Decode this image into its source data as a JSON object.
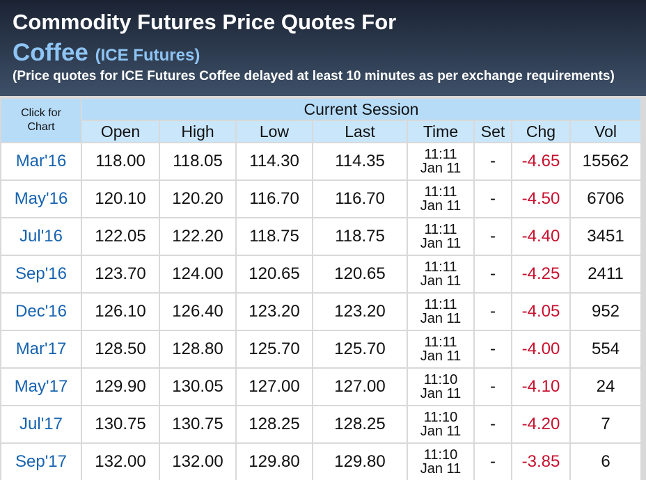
{
  "header": {
    "title": "Commodity Futures Price Quotes For",
    "commodity": "Coffee",
    "exchange": "(ICE Futures)",
    "note": "(Price quotes for ICE Futures Coffee delayed at least 10 minutes as per exchange requirements)"
  },
  "table": {
    "chart_header": "Click for Chart",
    "session_header": "Current Session",
    "columns": [
      "Open",
      "High",
      "Low",
      "Last",
      "Time",
      "Set",
      "Chg",
      "Vol"
    ],
    "rows": [
      {
        "contract": "Mar'16",
        "open": "118.00",
        "high": "118.05",
        "low": "114.30",
        "last": "114.35",
        "time": "11:11",
        "date": "Jan 11",
        "set": "-",
        "chg": "-4.65",
        "vol": "15562"
      },
      {
        "contract": "May'16",
        "open": "120.10",
        "high": "120.20",
        "low": "116.70",
        "last": "116.70",
        "time": "11:11",
        "date": "Jan 11",
        "set": "-",
        "chg": "-4.50",
        "vol": "6706"
      },
      {
        "contract": "Jul'16",
        "open": "122.05",
        "high": "122.20",
        "low": "118.75",
        "last": "118.75",
        "time": "11:11",
        "date": "Jan 11",
        "set": "-",
        "chg": "-4.40",
        "vol": "3451"
      },
      {
        "contract": "Sep'16",
        "open": "123.70",
        "high": "124.00",
        "low": "120.65",
        "last": "120.65",
        "time": "11:11",
        "date": "Jan 11",
        "set": "-",
        "chg": "-4.25",
        "vol": "2411"
      },
      {
        "contract": "Dec'16",
        "open": "126.10",
        "high": "126.40",
        "low": "123.20",
        "last": "123.20",
        "time": "11:11",
        "date": "Jan 11",
        "set": "-",
        "chg": "-4.05",
        "vol": "952"
      },
      {
        "contract": "Mar'17",
        "open": "128.50",
        "high": "128.80",
        "low": "125.70",
        "last": "125.70",
        "time": "11:11",
        "date": "Jan 11",
        "set": "-",
        "chg": "-4.00",
        "vol": "554"
      },
      {
        "contract": "May'17",
        "open": "129.90",
        "high": "130.05",
        "low": "127.00",
        "last": "127.00",
        "time": "11:10",
        "date": "Jan 11",
        "set": "-",
        "chg": "-4.10",
        "vol": "24"
      },
      {
        "contract": "Jul'17",
        "open": "130.75",
        "high": "130.75",
        "low": "128.25",
        "last": "128.25",
        "time": "11:10",
        "date": "Jan 11",
        "set": "-",
        "chg": "-4.20",
        "vol": "7"
      },
      {
        "contract": "Sep'17",
        "open": "132.00",
        "high": "132.00",
        "low": "129.80",
        "last": "129.80",
        "time": "11:10",
        "date": "Jan 11",
        "set": "-",
        "chg": "-3.85",
        "vol": "6"
      }
    ]
  }
}
